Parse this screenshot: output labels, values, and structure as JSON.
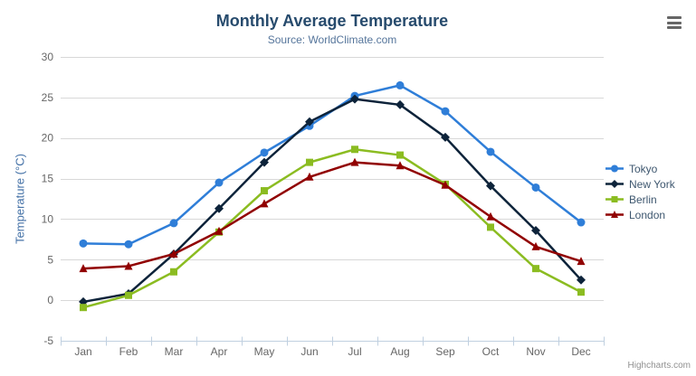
{
  "chart_data": {
    "type": "line",
    "title": "Monthly Average Temperature",
    "subtitle": "Source: WorldClimate.com",
    "categories": [
      "Jan",
      "Feb",
      "Mar",
      "Apr",
      "May",
      "Jun",
      "Jul",
      "Aug",
      "Sep",
      "Oct",
      "Nov",
      "Dec"
    ],
    "xlabel": "",
    "ylabel": "Temperature (°C)",
    "ylim": [
      -5,
      30
    ],
    "y_ticks": [
      -5,
      0,
      5,
      10,
      15,
      20,
      25,
      30
    ],
    "grid": true,
    "legend_position": "right",
    "series": [
      {
        "name": "Tokyo",
        "color": "#2f7ed8",
        "marker": "circle",
        "values": [
          7.0,
          6.9,
          9.5,
          14.5,
          18.2,
          21.5,
          25.2,
          26.5,
          23.3,
          18.3,
          13.9,
          9.6
        ]
      },
      {
        "name": "New York",
        "color": "#0d233a",
        "marker": "diamond",
        "values": [
          -0.2,
          0.8,
          5.7,
          11.3,
          17.0,
          22.0,
          24.8,
          24.1,
          20.1,
          14.1,
          8.6,
          2.5
        ]
      },
      {
        "name": "Berlin",
        "color": "#8bbc21",
        "marker": "square",
        "values": [
          -0.9,
          0.6,
          3.5,
          8.4,
          13.5,
          17.0,
          18.6,
          17.9,
          14.3,
          9.0,
          3.9,
          1.0
        ]
      },
      {
        "name": "London",
        "color": "#910000",
        "marker": "triangle",
        "values": [
          3.9,
          4.2,
          5.7,
          8.5,
          11.9,
          15.2,
          17.0,
          16.6,
          14.2,
          10.3,
          6.6,
          4.8
        ]
      }
    ],
    "colors": {
      "title": "#274b6d",
      "subtitle": "#55759b",
      "axis_labels": "#666666",
      "y_axis_title": "#4572a7",
      "gridline": "#d8d8d8",
      "axis_line": "#c0d0e0",
      "legend_text": "#3e576f"
    }
  },
  "credits": {
    "label": "Highcharts.com"
  },
  "icons": {
    "context_menu": "hamburger-menu-icon"
  }
}
